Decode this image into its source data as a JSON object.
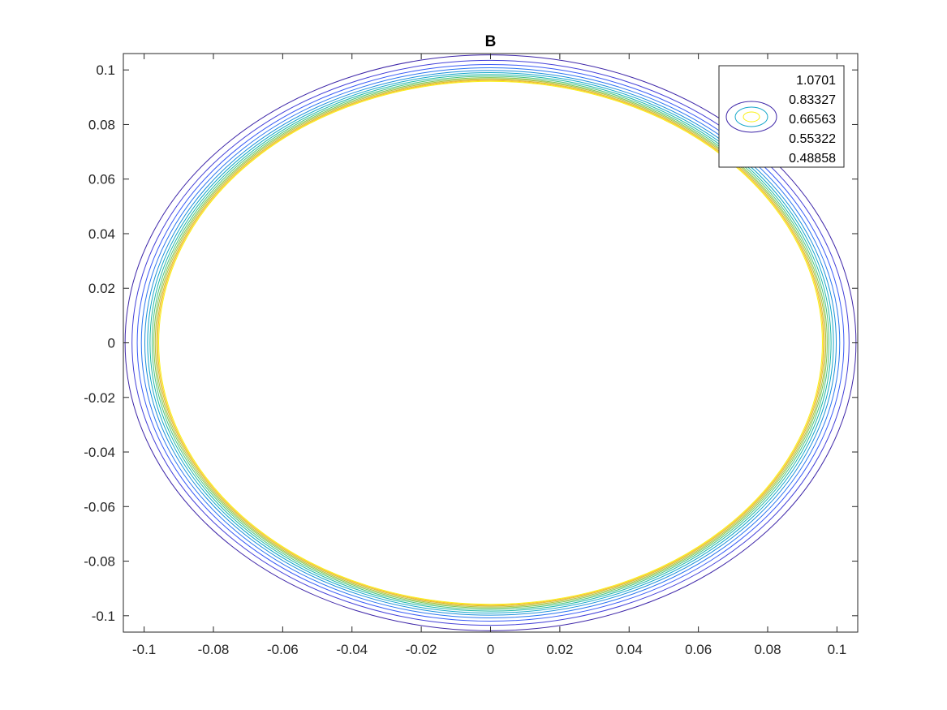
{
  "chart_data": {
    "type": "contour",
    "title": "B",
    "xlabel": "",
    "ylabel": "",
    "xlim": [
      -0.106,
      0.106
    ],
    "ylim": [
      -0.106,
      0.106
    ],
    "x_ticks": [
      -0.1,
      -0.08,
      -0.06,
      -0.04,
      -0.02,
      0,
      0.02,
      0.04,
      0.06,
      0.08,
      0.1
    ],
    "x_tick_labels": [
      "-0.1",
      "-0.08",
      "-0.06",
      "-0.04",
      "-0.02",
      "0",
      "0.02",
      "0.04",
      "0.06",
      "0.08",
      "0.1"
    ],
    "y_ticks": [
      0.1,
      0.08,
      0.06,
      0.04,
      0.02,
      0,
      -0.02,
      -0.04,
      -0.06,
      -0.08,
      -0.1
    ],
    "y_tick_labels": [
      "0.1",
      "0.08",
      "0.06",
      "0.04",
      "0.02",
      "0",
      "-0.02",
      "-0.04",
      "-0.06",
      "-0.08",
      "-0.1"
    ],
    "grid": false,
    "box": true,
    "colormap": "parula",
    "contour_radii": [
      0.1055,
      0.1035,
      0.102,
      0.1008,
      0.0998,
      0.099,
      0.0983,
      0.0977,
      0.0972,
      0.0968,
      0.0964,
      0.0961,
      0.0958
    ],
    "contour_colors": [
      "#3e26a8",
      "#4440d8",
      "#3a5cf6",
      "#2a75f0",
      "#1a90d9",
      "#14a7c9",
      "#1fb7a6",
      "#4ac27e",
      "#7fc655",
      "#b1c039",
      "#dcba30",
      "#f8c42b",
      "#f9f014"
    ],
    "legend": {
      "position": "top-right",
      "entries": [
        "1.0701",
        "0.83327",
        "0.66563",
        "0.55322",
        "0.48858"
      ],
      "icon_colors": [
        "#3e26a8",
        "#14a7c9",
        "#f9f014"
      ]
    }
  }
}
